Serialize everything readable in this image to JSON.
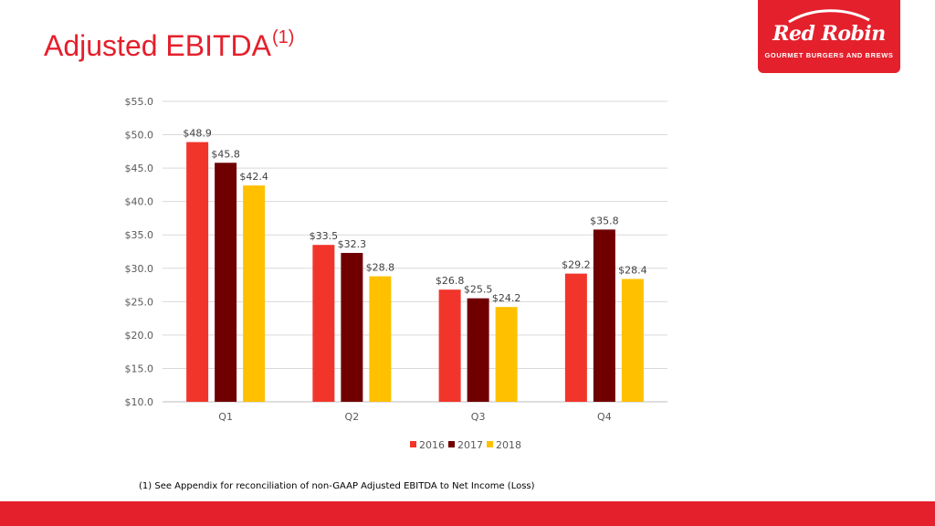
{
  "slide": {
    "title": "Adjusted EBITDA",
    "title_sup": "(1)",
    "footnote": "(1) See Appendix for reconciliation of non-GAAP Adjusted EBITDA to Net Income (Loss)"
  },
  "logo": {
    "name": "Red Robin",
    "tagline": "GOURMET BURGERS AND BREWS",
    "color": "#e4202c"
  },
  "chart_data": {
    "type": "bar",
    "title": "",
    "xlabel": "",
    "ylabel": "",
    "categories": [
      "Q1",
      "Q2",
      "Q3",
      "Q4"
    ],
    "series": [
      {
        "name": "2016",
        "color": "#f2352b",
        "values": [
          48.9,
          33.5,
          26.8,
          29.2
        ],
        "labels": [
          "$48.9",
          "$33.5",
          "$26.8",
          "$29.2"
        ]
      },
      {
        "name": "2017",
        "color": "#700000",
        "values": [
          45.8,
          32.3,
          25.5,
          35.8
        ],
        "labels": [
          "$45.8",
          "$32.3",
          "$25.5",
          "$35.8"
        ]
      },
      {
        "name": "2018",
        "color": "#ffc000",
        "values": [
          42.4,
          28.8,
          24.2,
          28.4
        ],
        "labels": [
          "$42.4",
          "$28.8",
          "$24.2",
          "$28.4"
        ]
      }
    ],
    "ylim": [
      10,
      55
    ],
    "yticks": [
      10,
      15,
      20,
      25,
      30,
      35,
      40,
      45,
      50,
      55
    ],
    "ytick_labels": [
      "$10.0",
      "$15.0",
      "$20.0",
      "$25.0",
      "$30.0",
      "$35.0",
      "$40.0",
      "$45.0",
      "$50.0",
      "$55.0"
    ],
    "grid": true,
    "legend": "bottom-center"
  }
}
